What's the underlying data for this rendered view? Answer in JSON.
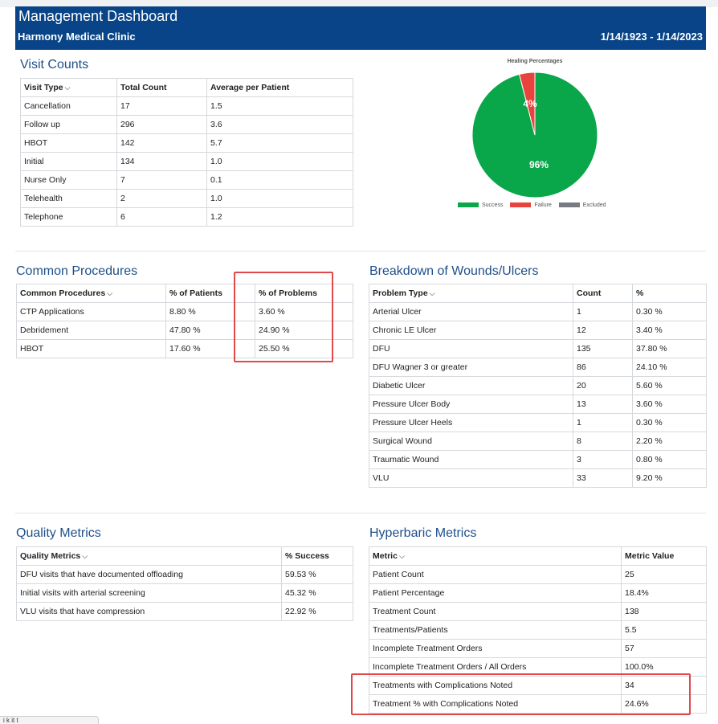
{
  "header": {
    "title": "Management Dashboard",
    "clinic": "Harmony Medical Clinic",
    "date_range": "1/14/1923 - 1/14/2023"
  },
  "visit_counts": {
    "title": "Visit Counts",
    "columns": [
      "Visit Type",
      "Total Count",
      "Average per Patient"
    ],
    "rows": [
      [
        "Cancellation",
        "17",
        "1.5"
      ],
      [
        "Follow up",
        "296",
        "3.6"
      ],
      [
        "HBOT",
        "142",
        "5.7"
      ],
      [
        "Initial",
        "134",
        "1.0"
      ],
      [
        "Nurse Only",
        "7",
        "0.1"
      ],
      [
        "Telehealth",
        "2",
        "1.0"
      ],
      [
        "Telephone",
        "6",
        "1.2"
      ]
    ]
  },
  "healing_chart": {
    "title": "Healing Percentages",
    "success_label": "96%",
    "failure_label": "4%",
    "legend": [
      "Success",
      "Failure",
      "Excluded"
    ],
    "colors": {
      "success": "#0aa64a",
      "failure": "#e8433c",
      "excluded": "#777a80"
    }
  },
  "chart_data": {
    "type": "pie",
    "title": "Healing Percentages",
    "labels": [
      "Success",
      "Failure",
      "Excluded"
    ],
    "values": [
      96,
      4,
      0
    ],
    "legend_position": "bottom"
  },
  "common_procedures": {
    "title": "Common Procedures",
    "columns": [
      "Common Procedures",
      "% of Patients",
      "% of Problems"
    ],
    "rows": [
      [
        "CTP Applications",
        "8.80 %",
        "3.60 %"
      ],
      [
        "Debridement",
        "47.80 %",
        "24.90 %"
      ],
      [
        "HBOT",
        "17.60 %",
        "25.50 %"
      ]
    ]
  },
  "wounds": {
    "title": "Breakdown of Wounds/Ulcers",
    "columns": [
      "Problem Type",
      "Count",
      "%"
    ],
    "rows": [
      [
        "Arterial Ulcer",
        "1",
        "0.30 %"
      ],
      [
        "Chronic LE Ulcer",
        "12",
        "3.40 %"
      ],
      [
        "DFU",
        "135",
        "37.80 %"
      ],
      [
        "DFU Wagner 3 or greater",
        "86",
        "24.10 %"
      ],
      [
        "Diabetic Ulcer",
        "20",
        "5.60 %"
      ],
      [
        "Pressure Ulcer Body",
        "13",
        "3.60 %"
      ],
      [
        "Pressure Ulcer Heels",
        "1",
        "0.30 %"
      ],
      [
        "Surgical Wound",
        "8",
        "2.20 %"
      ],
      [
        "Traumatic Wound",
        "3",
        "0.80 %"
      ],
      [
        "VLU",
        "33",
        "9.20 %"
      ]
    ]
  },
  "quality_metrics": {
    "title": "Quality Metrics",
    "columns": [
      "Quality Metrics",
      "% Success"
    ],
    "rows": [
      [
        "DFU visits that have documented offloading",
        "59.53 %"
      ],
      [
        "Initial visits with arterial screening",
        "45.32 %"
      ],
      [
        "VLU visits that have compression",
        "22.92 %"
      ]
    ]
  },
  "hyperbaric_metrics": {
    "title": "Hyperbaric Metrics",
    "columns": [
      "Metric",
      "Metric Value"
    ],
    "rows": [
      [
        "Patient Count",
        "25"
      ],
      [
        "Patient Percentage",
        "18.4%"
      ],
      [
        "Treatment Count",
        "138"
      ],
      [
        "Treatments/Patients",
        "5.5"
      ],
      [
        "Incomplete Treatment Orders",
        "57"
      ],
      [
        "Incomplete Treatment Orders / All Orders",
        "100.0%"
      ],
      [
        "Treatments with Complications Noted",
        "34"
      ],
      [
        "Treatment % with Complications Noted",
        "24.6%"
      ]
    ]
  },
  "bottom_tab": {
    "label": "i       k   it    t"
  }
}
